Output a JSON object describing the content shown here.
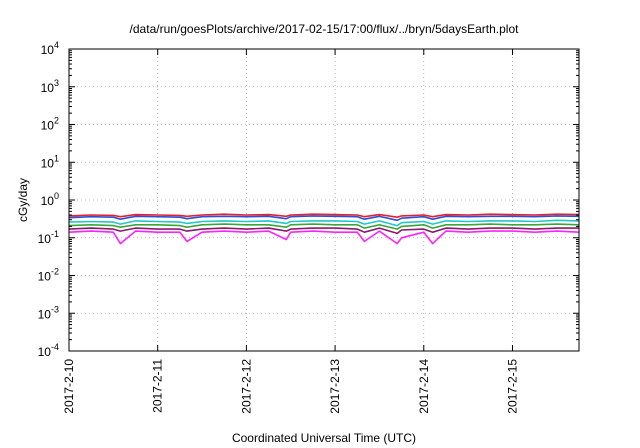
{
  "chart_data": {
    "type": "line",
    "title": "/data/run/goesPlots/archive/2017-02-15/17:00/flux/../bryn/5daysEarth.plot",
    "xlabel": "Coordinated Universal Time (UTC)",
    "ylabel": "cGy/day",
    "y_scale": "log",
    "ylim": [
      0.0001,
      10000
    ],
    "y_tick_base": "10",
    "y_tick_exponents": [
      "-4",
      "-3",
      "-2",
      "-1",
      "0",
      "1",
      "2",
      "3",
      "4"
    ],
    "x_tick_labels": [
      "2017-2-10",
      "2017-2-11",
      "2017-2-12",
      "2017-2-13",
      "2017-2-14",
      "2017-2-15"
    ],
    "xlim": [
      0,
      5.75
    ],
    "x_tick_values": [
      0,
      1,
      2,
      3,
      4,
      5
    ],
    "grid": true,
    "legend": "none",
    "x": [
      0.0,
      0.25,
      0.5,
      0.58,
      0.75,
      1.0,
      1.25,
      1.33,
      1.5,
      1.75,
      2.0,
      2.25,
      2.45,
      2.5,
      2.75,
      3.0,
      3.25,
      3.33,
      3.5,
      3.7,
      3.75,
      4.0,
      4.1,
      4.25,
      4.5,
      4.75,
      5.0,
      5.25,
      5.5,
      5.75
    ],
    "series": [
      {
        "color": "#e3222b",
        "values": [
          0.38,
          0.4,
          0.39,
          0.36,
          0.41,
          0.4,
          0.39,
          0.37,
          0.4,
          0.42,
          0.4,
          0.41,
          0.37,
          0.4,
          0.42,
          0.41,
          0.4,
          0.36,
          0.41,
          0.35,
          0.38,
          0.4,
          0.36,
          0.41,
          0.4,
          0.42,
          0.41,
          0.4,
          0.42,
          0.41
        ]
      },
      {
        "color": "#2f4fd8",
        "values": [
          0.34,
          0.36,
          0.35,
          0.31,
          0.37,
          0.36,
          0.35,
          0.32,
          0.36,
          0.37,
          0.36,
          0.37,
          0.32,
          0.36,
          0.38,
          0.37,
          0.36,
          0.31,
          0.37,
          0.29,
          0.33,
          0.36,
          0.31,
          0.37,
          0.36,
          0.37,
          0.37,
          0.36,
          0.38,
          0.37
        ]
      },
      {
        "color": "#20c8c8",
        "values": [
          0.26,
          0.27,
          0.26,
          0.23,
          0.28,
          0.27,
          0.26,
          0.24,
          0.27,
          0.28,
          0.27,
          0.28,
          0.24,
          0.27,
          0.28,
          0.28,
          0.27,
          0.23,
          0.28,
          0.21,
          0.25,
          0.27,
          0.23,
          0.28,
          0.27,
          0.28,
          0.28,
          0.27,
          0.29,
          0.28
        ]
      },
      {
        "color": "#3aa53a",
        "values": [
          0.21,
          0.22,
          0.21,
          0.19,
          0.22,
          0.22,
          0.21,
          0.19,
          0.22,
          0.23,
          0.22,
          0.22,
          0.19,
          0.22,
          0.23,
          0.22,
          0.22,
          0.18,
          0.22,
          0.17,
          0.2,
          0.22,
          0.18,
          0.22,
          0.22,
          0.23,
          0.22,
          0.22,
          0.23,
          0.22
        ]
      },
      {
        "color": "#8a1a6e",
        "values": [
          0.17,
          0.18,
          0.17,
          0.15,
          0.18,
          0.17,
          0.17,
          0.15,
          0.17,
          0.18,
          0.17,
          0.18,
          0.15,
          0.17,
          0.18,
          0.18,
          0.17,
          0.14,
          0.18,
          0.13,
          0.16,
          0.17,
          0.14,
          0.18,
          0.17,
          0.18,
          0.18,
          0.17,
          0.18,
          0.18
        ]
      },
      {
        "color": "#ff20ff",
        "values": [
          0.14,
          0.15,
          0.14,
          0.07,
          0.15,
          0.14,
          0.14,
          0.08,
          0.14,
          0.15,
          0.14,
          0.15,
          0.09,
          0.14,
          0.15,
          0.14,
          0.14,
          0.08,
          0.15,
          0.07,
          0.1,
          0.14,
          0.07,
          0.15,
          0.14,
          0.15,
          0.15,
          0.14,
          0.15,
          0.14
        ]
      }
    ]
  }
}
